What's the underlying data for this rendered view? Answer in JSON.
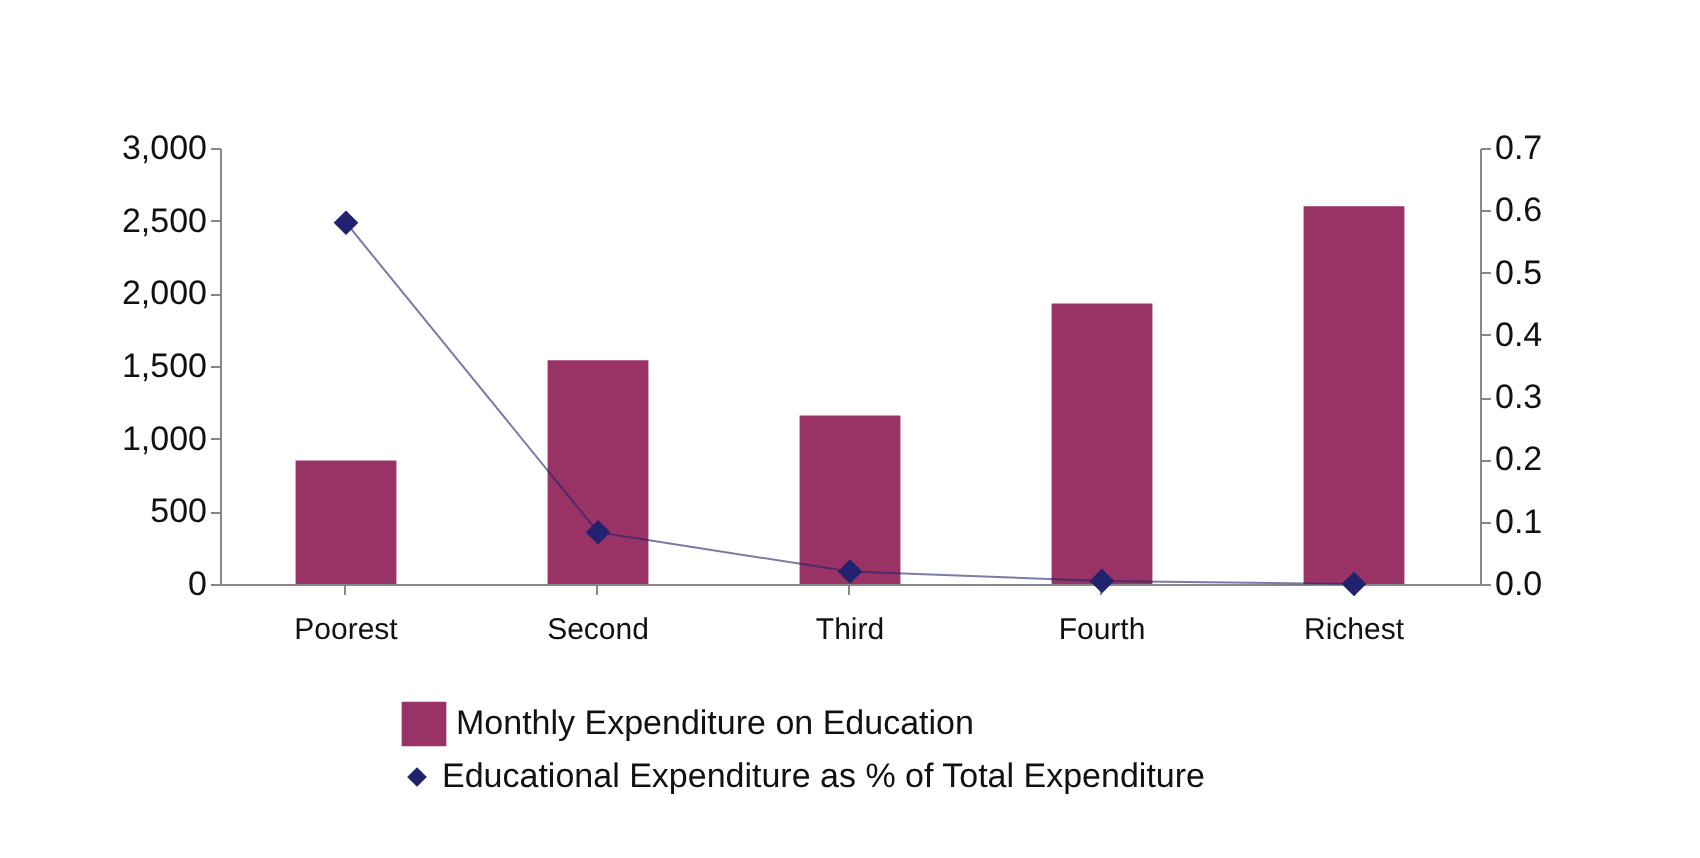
{
  "chart_data": {
    "type": "bar",
    "categories": [
      "Poorest",
      "Second",
      "Third",
      "Fourth",
      "Richest"
    ],
    "series": [
      {
        "name": "Monthly Expenditure on Education",
        "color": "#993366",
        "values": [
          850,
          1540,
          1160,
          1930,
          2600
        ]
      },
      {
        "name": "Educational Expenditure as % of Total Expenditure",
        "type": "line",
        "axis": "y2",
        "color": "#22226e",
        "marker": "diamond",
        "values": [
          0.58,
          0.083,
          0.02,
          0.005,
          0.0
        ]
      }
    ],
    "ylim": [
      0,
      3000
    ],
    "yticks": [
      {
        "value": 0,
        "label": "0"
      },
      {
        "value": 500,
        "label": "500"
      },
      {
        "value": 1000,
        "label": "1,000"
      },
      {
        "value": 1500,
        "label": "1,500"
      },
      {
        "value": 2000,
        "label": "2,000"
      },
      {
        "value": 2500,
        "label": "2,500"
      },
      {
        "value": 3000,
        "label": "3,000"
      }
    ],
    "y2lim": [
      0,
      0.7
    ],
    "y2ticks": [
      {
        "value": 0,
        "label": "0.0"
      },
      0.1,
      0.2,
      0.3,
      0.4,
      0.5,
      0.6,
      0.7
    ],
    "grid": false,
    "legend": "bottom"
  }
}
